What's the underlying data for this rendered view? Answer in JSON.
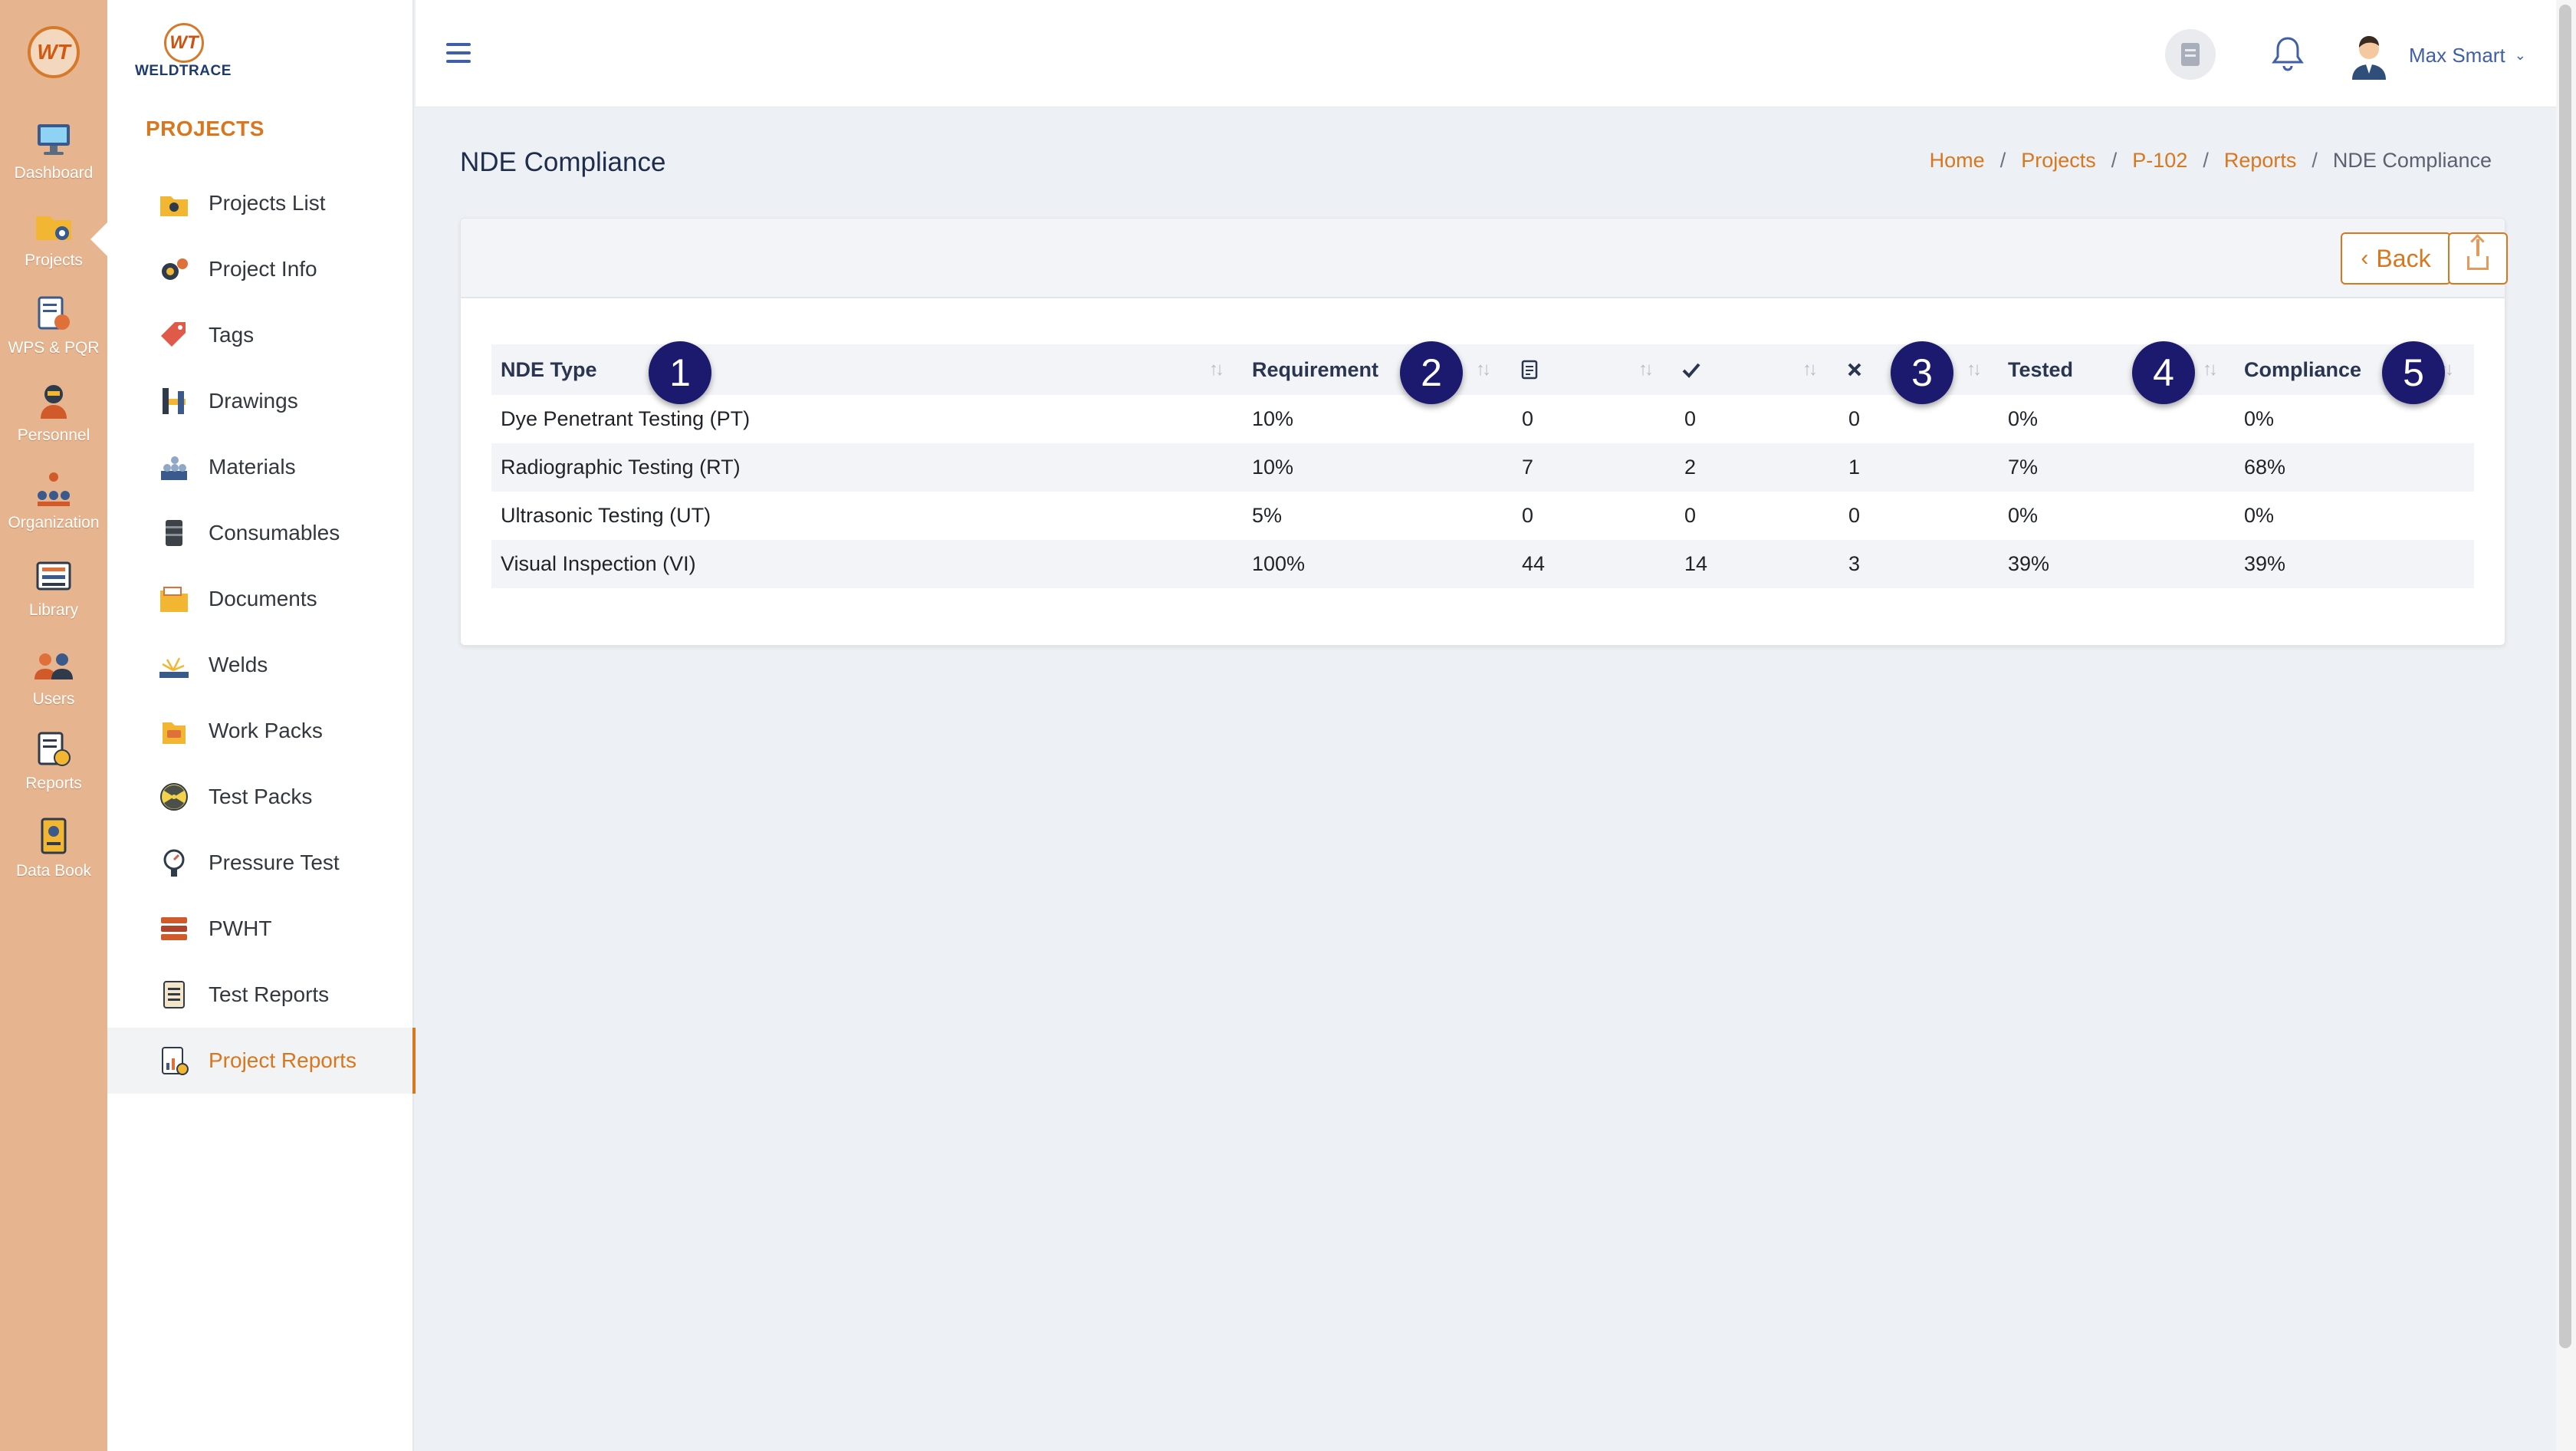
{
  "brand": {
    "rail_logo_text": "WT",
    "sidebar_logo_text": "WT",
    "sidebar_wordmark": "WELDTRACE",
    "accent_color": "#d9771e",
    "rail_color": "#e6b58f",
    "callout_color": "#1b1a6e"
  },
  "rail": {
    "items": [
      {
        "label": "Dashboard",
        "icon": "dashboard-icon"
      },
      {
        "label": "Projects",
        "icon": "projects-folder-icon"
      },
      {
        "label": "WPS & PQR",
        "icon": "wps-pqr-icon"
      },
      {
        "label": "Personnel",
        "icon": "welder-icon"
      },
      {
        "label": "Organization",
        "icon": "organization-icon"
      },
      {
        "label": "Library",
        "icon": "library-icon"
      },
      {
        "label": "Users",
        "icon": "users-icon"
      },
      {
        "label": "Reports",
        "icon": "reports-icon"
      },
      {
        "label": "Data Book",
        "icon": "data-book-icon"
      }
    ]
  },
  "sidebar": {
    "title": "PROJECTS",
    "items": [
      {
        "label": "Projects List",
        "icon": "projects-list-icon"
      },
      {
        "label": "Project Info",
        "icon": "project-info-icon"
      },
      {
        "label": "Tags",
        "icon": "tag-icon"
      },
      {
        "label": "Drawings",
        "icon": "drawings-icon"
      },
      {
        "label": "Materials",
        "icon": "materials-icon"
      },
      {
        "label": "Consumables",
        "icon": "consumables-icon"
      },
      {
        "label": "Documents",
        "icon": "documents-icon"
      },
      {
        "label": "Welds",
        "icon": "welds-icon"
      },
      {
        "label": "Work Packs",
        "icon": "work-packs-icon"
      },
      {
        "label": "Test Packs",
        "icon": "test-packs-icon"
      },
      {
        "label": "Pressure Test",
        "icon": "pressure-test-icon"
      },
      {
        "label": "PWHT",
        "icon": "pwht-icon"
      },
      {
        "label": "Test Reports",
        "icon": "test-reports-icon"
      },
      {
        "label": "Project Reports",
        "icon": "project-reports-icon",
        "active": true
      }
    ]
  },
  "header": {
    "user_name": "Max Smart"
  },
  "page": {
    "title": "NDE Compliance",
    "breadcrumb": [
      "Home",
      "Projects",
      "P-102",
      "Reports",
      "NDE Compliance"
    ]
  },
  "toolbar": {
    "back_label": "Back"
  },
  "table": {
    "columns": [
      "NDE Type",
      "Requirement",
      "document-icon",
      "check-icon",
      "cross-icon",
      "Tested",
      "Compliance"
    ],
    "headers": {
      "type": "NDE Type",
      "requirement": "Requirement",
      "tested": "Tested",
      "compliance": "Compliance"
    },
    "rows": [
      {
        "type": "Dye Penetrant Testing (PT)",
        "requirement": "10%",
        "docs": "0",
        "accepted": "0",
        "rejected": "0",
        "tested": "0%",
        "compliance": "0%"
      },
      {
        "type": "Radiographic Testing (RT)",
        "requirement": "10%",
        "docs": "7",
        "accepted": "2",
        "rejected": "1",
        "tested": "7%",
        "compliance": "68%"
      },
      {
        "type": "Ultrasonic Testing (UT)",
        "requirement": "5%",
        "docs": "0",
        "accepted": "0",
        "rejected": "0",
        "tested": "0%",
        "compliance": "0%"
      },
      {
        "type": "Visual Inspection (VI)",
        "requirement": "100%",
        "docs": "44",
        "accepted": "14",
        "rejected": "3",
        "tested": "39%",
        "compliance": "39%"
      }
    ]
  },
  "callouts": [
    "1",
    "2",
    "3",
    "4",
    "5"
  ]
}
